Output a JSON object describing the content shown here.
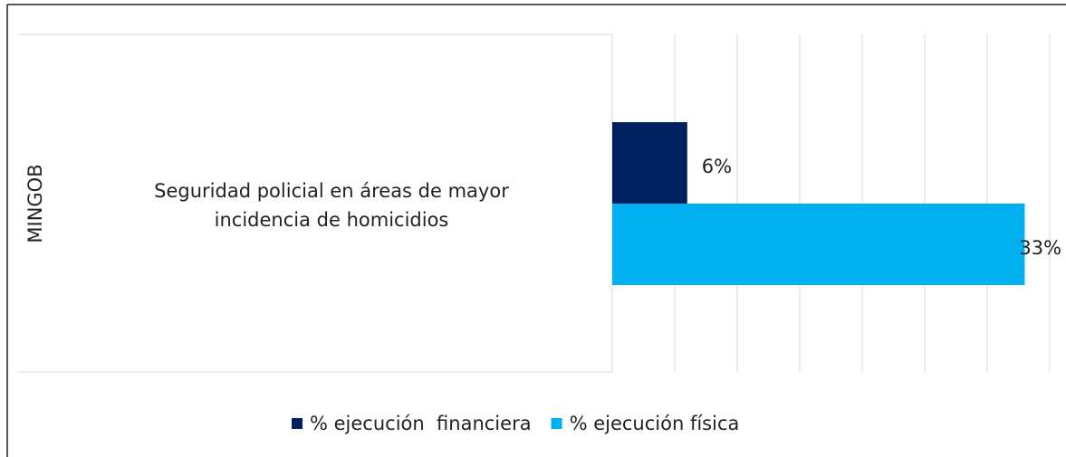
{
  "chart_data": {
    "type": "hbar",
    "groups": [
      "MINGOB"
    ],
    "categories": [
      "Seguridad policial en áreas de mayor incidencia de homicidios"
    ],
    "series": [
      {
        "name": "% ejecución  financiera",
        "color": "#002060",
        "values": [
          6
        ],
        "value_labels": [
          "6%"
        ]
      },
      {
        "name": "% ejecución física",
        "color": "#00b0f0",
        "values": [
          33
        ],
        "value_labels": [
          "33%"
        ]
      }
    ],
    "xlim": [
      0,
      35
    ],
    "xticks": [
      0,
      5,
      10,
      15,
      20,
      25,
      30,
      35
    ],
    "grid": true,
    "legend": "bottom"
  }
}
